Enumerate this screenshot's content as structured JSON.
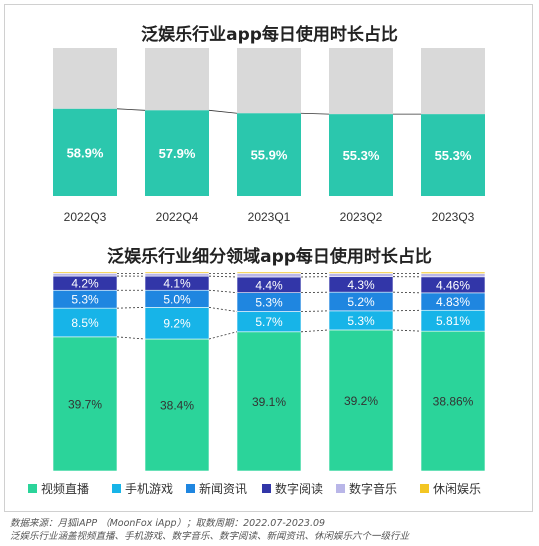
{
  "colors": {
    "primary": "#2bc7ad",
    "remainder": "#d9d9d9",
    "video": "#2bd49a",
    "game": "#17b4e8",
    "news": "#1f86e0",
    "reading": "#3236a8",
    "music": "#b9b6e8",
    "casual": "#f3c623"
  },
  "watermark": "MoonFox",
  "chart_data": [
    {
      "type": "bar",
      "title": "泛娱乐行业app每日使用时长占比",
      "categories": [
        "2022Q3",
        "2022Q4",
        "2023Q1",
        "2023Q2",
        "2023Q3"
      ],
      "values": [
        58.9,
        57.9,
        55.9,
        55.3,
        55.3
      ],
      "labels": [
        "58.9%",
        "57.9%",
        "55.9%",
        "55.3%",
        "55.3%"
      ],
      "ylim": [
        0,
        100
      ],
      "stacked_to_100": true,
      "legend": "none"
    },
    {
      "type": "bar",
      "title": "泛娱乐行业细分领域app每日使用时长占比",
      "stacked": true,
      "categories": [
        "2022Q3",
        "2022Q4",
        "2023Q1",
        "2023Q2",
        "2023Q3"
      ],
      "legend": "bottom",
      "series": [
        {
          "name": "视频直播",
          "key": "video",
          "values": [
            39.7,
            38.4,
            39.1,
            39.2,
            38.86
          ],
          "labels": [
            "39.7%",
            "38.4%",
            "39.1%",
            "39.2%",
            "38.86%"
          ]
        },
        {
          "name": "手机游戏",
          "key": "game",
          "values": [
            8.5,
            9.2,
            5.7,
            5.3,
            5.81
          ],
          "labels": [
            "8.5%",
            "9.2%",
            "5.7%",
            "5.3%",
            "5.81%"
          ]
        },
        {
          "name": "新闻资讯",
          "key": "news",
          "values": [
            5.3,
            5.0,
            5.3,
            5.2,
            4.83
          ],
          "labels": [
            "5.3%",
            "5.0%",
            "5.3%",
            "5.2%",
            "4.83%"
          ]
        },
        {
          "name": "数字阅读",
          "key": "reading",
          "values": [
            4.2,
            4.1,
            4.4,
            4.3,
            4.46
          ],
          "labels": [
            "4.2%",
            "4.1%",
            "4.4%",
            "4.3%",
            "4.46%"
          ]
        },
        {
          "name": "数字音乐",
          "key": "music",
          "values": [
            0.8,
            0.8,
            1.0,
            0.9,
            0.9
          ],
          "labels": [
            "",
            "",
            "",
            "",
            ""
          ]
        },
        {
          "name": "休闲娱乐",
          "key": "casual",
          "values": [
            0.4,
            0.4,
            0.4,
            0.4,
            0.44
          ],
          "labels": [
            "",
            "",
            "",
            "",
            ""
          ]
        }
      ]
    }
  ],
  "source": {
    "line1": "数据来源：月狐iAPP （MoonFox iApp）；取数周期：2022.07-2023.09",
    "line2": "泛娱乐行业涵盖视频直播、手机游戏、数字音乐、数字阅读、新闻资讯、休闲娱乐六个一级行业"
  }
}
